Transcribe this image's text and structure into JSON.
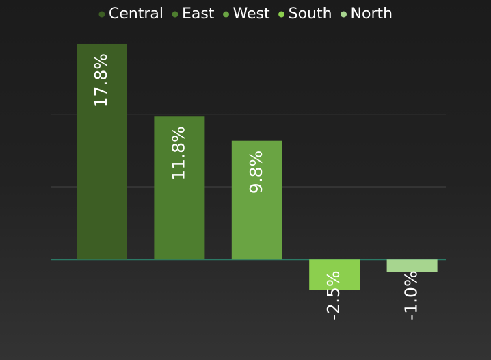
{
  "chart_data": {
    "type": "bar",
    "series": [
      {
        "name": "Central",
        "color": "#3d5e24",
        "values": [
          17.8
        ],
        "value_labels": [
          "17.8%"
        ]
      },
      {
        "name": "East",
        "color": "#4e7e2f",
        "values": [
          11.8
        ],
        "value_labels": [
          "11.8%"
        ]
      },
      {
        "name": "West",
        "color": "#6aa443",
        "values": [
          9.8
        ],
        "value_labels": [
          "9.8%"
        ]
      },
      {
        "name": "South",
        "color": "#8ccf4e",
        "values": [
          -2.5
        ],
        "value_labels": [
          "-2.5%"
        ]
      },
      {
        "name": "North",
        "color": "#a7d58f",
        "values": [
          -1.0
        ],
        "value_labels": [
          "-1.0%"
        ]
      }
    ],
    "ylim": [
      -8,
      20
    ],
    "yticks": [
      0,
      6,
      12
    ],
    "grid": true,
    "legend": "top"
  }
}
